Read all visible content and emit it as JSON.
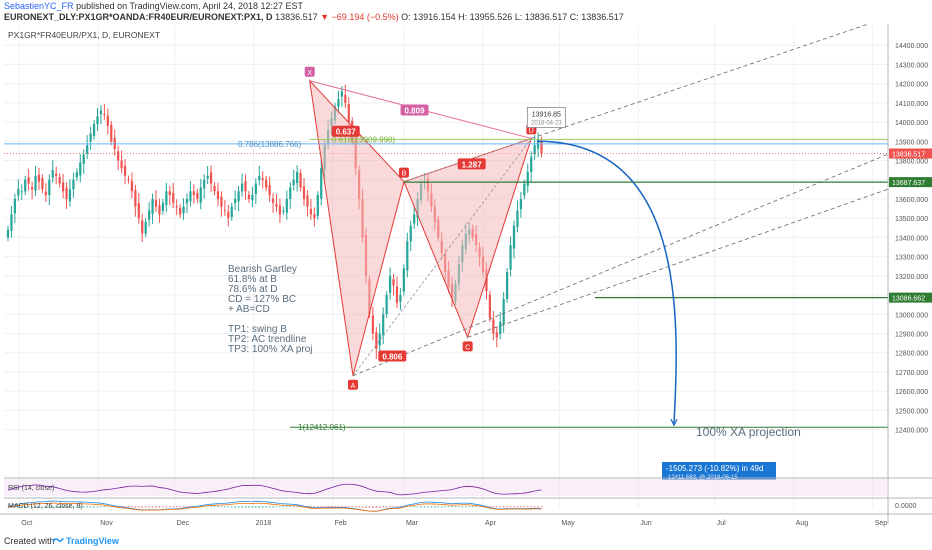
{
  "header": {
    "author": "SebastienYC_FR",
    "published": "published on TradingView.com, April 24, 2018 12:27 EST",
    "symbol_line": "EURONEXT_DLY:PX1GR*OANDA:FR40EUR/EURONEXT:PX1, D",
    "last": "13836.517",
    "change": "▼ −69.194 (−0.5%)",
    "ohlc": "O: 13916.154 H: 13955.526 L: 13836.517 C: 13836.517"
  },
  "footer": {
    "created_with": "Created with",
    "brand": "TradingView"
  },
  "colors": {
    "up": "#26a69a",
    "down": "#ef5350",
    "pattern_fill": "#f4b9b9",
    "pattern_line": "#e53935",
    "xa_line": "#e57399",
    "green_line": "#2e7d32",
    "fib_line": "#9ccc65",
    "blue_line": "#64b5f6",
    "projection": "#1565c0",
    "price_tag": "#ef5350",
    "grid": "#eef0f3"
  },
  "chart_data": {
    "type": "candlestick",
    "title": "PX1GR*FR40EUR/PX1, D, EURONEXT",
    "ylim": [
      12200,
      14500
    ],
    "y_ticks": [
      12400,
      12500,
      12600,
      12700,
      12800,
      12900,
      13000,
      13100,
      13200,
      13300,
      13400,
      13500,
      13600,
      13700,
      13800,
      13900,
      14000,
      14100,
      14200,
      14300,
      14400
    ],
    "x_months": [
      "Oct",
      "Nov",
      "Dec",
      "2018",
      "Feb",
      "Mar",
      "Apr",
      "May",
      "Jun",
      "Jul",
      "Aug",
      "Sep"
    ],
    "x_month_dates": [
      "2017-10-01",
      "2017-11-01",
      "2017-12-01",
      "2018-01-01",
      "2018-02-01",
      "2018-03-01",
      "2018-04-01",
      "2018-05-01",
      "2018-06-01",
      "2018-07-01",
      "2018-08-01",
      "2018-09-01"
    ],
    "last_date": "2018-04-24",
    "price_axis_tags": [
      {
        "value": 13836.517,
        "label": "13836.517",
        "color": "#ef5350"
      },
      {
        "value": 13687.637,
        "label": "13687.637",
        "color": "#2e7d32"
      },
      {
        "value": 13086.662,
        "label": "13086.662",
        "color": "#2e7d32"
      }
    ],
    "close_series": [
      13440,
      13520,
      13600,
      13650,
      13640,
      13700,
      13680,
      13650,
      13720,
      13690,
      13650,
      13620,
      13700,
      13750,
      13720,
      13680,
      13640,
      13600,
      13650,
      13700,
      13740,
      13790,
      13830,
      13880,
      13940,
      13990,
      14030,
      14060,
      14040,
      13980,
      13900,
      13860,
      13800,
      13760,
      13720,
      13700,
      13640,
      13560,
      13500,
      13420,
      13480,
      13540,
      13600,
      13560,
      13520,
      13580,
      13640,
      13620,
      13580,
      13560,
      13520,
      13560,
      13600,
      13640,
      13620,
      13600,
      13660,
      13700,
      13720,
      13680,
      13640,
      13600,
      13560,
      13540,
      13500,
      13560,
      13600,
      13640,
      13680,
      13640,
      13600,
      13620,
      13680,
      13720,
      13700,
      13660,
      13620,
      13580,
      13560,
      13520,
      13540,
      13600,
      13660,
      13700,
      13740,
      13660,
      13600,
      13560,
      13520,
      13500,
      13620,
      13760,
      13880,
      13960,
      14020,
      14080,
      14120,
      14160,
      14100,
      14000,
      13900,
      13760,
      13600,
      13400,
      13200,
      13000,
      12900,
      12820,
      12900,
      13000,
      13100,
      13200,
      13150,
      13060,
      13100,
      13240,
      13380,
      13460,
      13520,
      13600,
      13680,
      13690,
      13640,
      13560,
      13480,
      13400,
      13320,
      13220,
      13140,
      13080,
      13160,
      13260,
      13360,
      13420,
      13440,
      13400,
      13360,
      13300,
      13220,
      13120,
      12980,
      12900,
      12880,
      12960,
      13080,
      13220,
      13360,
      13460,
      13540,
      13600,
      13680,
      13740,
      13820,
      13880,
      13910,
      13836
    ],
    "pattern": {
      "name": "Bearish Gartley",
      "points": [
        {
          "label": "X",
          "date": "2018-01-23",
          "value": 14215
        },
        {
          "label": "A",
          "date": "2018-02-09",
          "value": 12680
        },
        {
          "label": "B",
          "date": "2018-03-01",
          "value": 13690
        },
        {
          "label": "C",
          "date": "2018-03-26",
          "value": 12880
        },
        {
          "label": "D",
          "date": "2018-04-20",
          "value": 13915
        }
      ],
      "ratios": [
        {
          "label": "0.637",
          "value": 0.637
        },
        {
          "label": "0.809",
          "value": 0.809
        },
        {
          "label": "1.287",
          "value": 1.287
        },
        {
          "label": "0.806",
          "value": 0.806
        }
      ]
    },
    "fib_levels": [
      {
        "label": "0.786(13886.766)",
        "value": 13886.766
      },
      {
        "label": "0.618(13909.998)",
        "value": 13909.998
      },
      {
        "label": "1(12412.061)",
        "value": 12412.061
      }
    ],
    "horizontal_levels": [
      13687.637,
      13086.662
    ],
    "callout": {
      "label": "13916.85",
      "date_label": "2018-04-23"
    },
    "annotations": {
      "notes": [
        "Bearish Gartley",
        "61.8% at B",
        "78.6% at D",
        "CD = 127% BC",
        "+ AB=CD",
        "",
        "TP1: swing B",
        "TP2: AC trendline",
        "TP3: 100% XA proj"
      ],
      "projection_label": "100% XA projection",
      "projection_box": "-1505.273 (-10.82%) in 49d",
      "projection_box_sub": "12411.583, @ 2018-06-15"
    },
    "rsi": {
      "label": "RSI (14, close)"
    },
    "macd": {
      "label": "MACD (12, 26, close, 9)",
      "zero_tick": "0.0000"
    }
  }
}
